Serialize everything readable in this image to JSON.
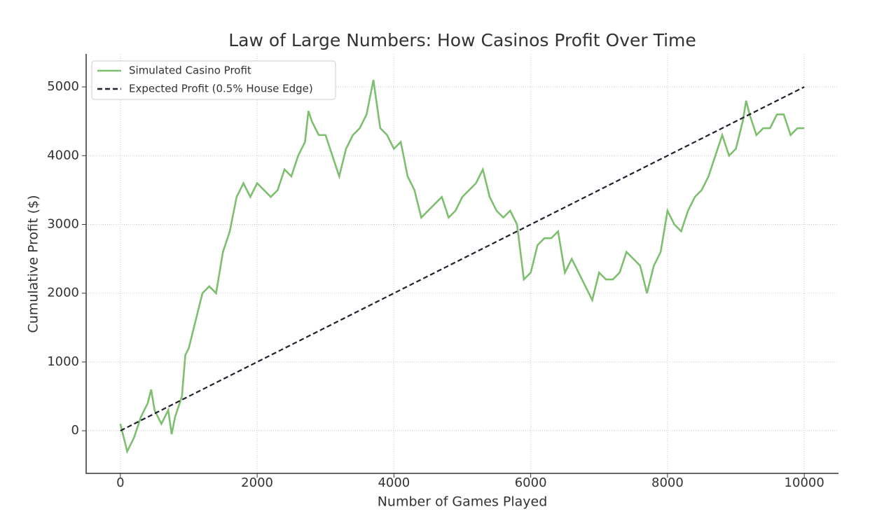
{
  "chart_data": {
    "type": "line",
    "title": "Law of Large Numbers: How Casinos Profit Over Time",
    "xlabel": "Number of Games Played",
    "ylabel": "Cumulative Profit ($)",
    "xlim": [
      -500,
      10500
    ],
    "ylim": [
      -620,
      5480
    ],
    "xticks": [
      0,
      2000,
      4000,
      6000,
      8000,
      10000
    ],
    "yticks": [
      0,
      1000,
      2000,
      3000,
      4000,
      5000
    ],
    "grid": true,
    "legend": "upper left",
    "series": [
      {
        "name": "Simulated Casino Profit",
        "color": "#7dbf6f",
        "linestyle": "solid",
        "x": [
          0,
          100,
          200,
          300,
          400,
          450,
          500,
          600,
          700,
          750,
          800,
          900,
          950,
          1000,
          1100,
          1200,
          1300,
          1400,
          1500,
          1600,
          1700,
          1800,
          1900,
          2000,
          2100,
          2200,
          2300,
          2400,
          2500,
          2600,
          2700,
          2750,
          2800,
          2900,
          3000,
          3100,
          3200,
          3300,
          3400,
          3500,
          3600,
          3700,
          3800,
          3900,
          4000,
          4100,
          4200,
          4300,
          4400,
          4500,
          4600,
          4700,
          4800,
          4900,
          5000,
          5100,
          5200,
          5300,
          5400,
          5500,
          5600,
          5700,
          5800,
          5900,
          6000,
          6100,
          6200,
          6300,
          6400,
          6500,
          6600,
          6700,
          6800,
          6900,
          7000,
          7100,
          7200,
          7300,
          7400,
          7500,
          7600,
          7700,
          7800,
          7900,
          8000,
          8100,
          8200,
          8300,
          8400,
          8500,
          8600,
          8700,
          8800,
          8900,
          9000,
          9100,
          9150,
          9200,
          9300,
          9400,
          9500,
          9600,
          9700,
          9800,
          9900,
          10000
        ],
        "values": [
          100,
          -300,
          -100,
          200,
          400,
          600,
          300,
          100,
          300,
          -50,
          200,
          500,
          1100,
          1200,
          1600,
          2000,
          2100,
          2000,
          2600,
          2900,
          3400,
          3600,
          3400,
          3600,
          3500,
          3400,
          3500,
          3800,
          3700,
          4000,
          4200,
          4650,
          4500,
          4300,
          4300,
          4000,
          3700,
          4100,
          4300,
          4400,
          4600,
          5100,
          4400,
          4300,
          4100,
          4200,
          3700,
          3500,
          3100,
          3200,
          3300,
          3400,
          3100,
          3200,
          3400,
          3500,
          3600,
          3800,
          3400,
          3200,
          3100,
          3200,
          3000,
          2200,
          2300,
          2700,
          2800,
          2800,
          2900,
          2300,
          2500,
          2300,
          2100,
          1900,
          2300,
          2200,
          2200,
          2300,
          2600,
          2500,
          2400,
          2000,
          2400,
          2600,
          3200,
          3000,
          2900,
          3200,
          3400,
          3500,
          3700,
          4000,
          4300,
          4000,
          4100,
          4500,
          4800,
          4600,
          4300,
          4400,
          4400,
          4600,
          4600,
          4300,
          4400,
          4400
        ]
      },
      {
        "name": "Expected Profit (0.5% House Edge)",
        "color": "#1f2030",
        "linestyle": "dashed",
        "x": [
          0,
          10000
        ],
        "values": [
          0,
          5000
        ]
      }
    ]
  }
}
